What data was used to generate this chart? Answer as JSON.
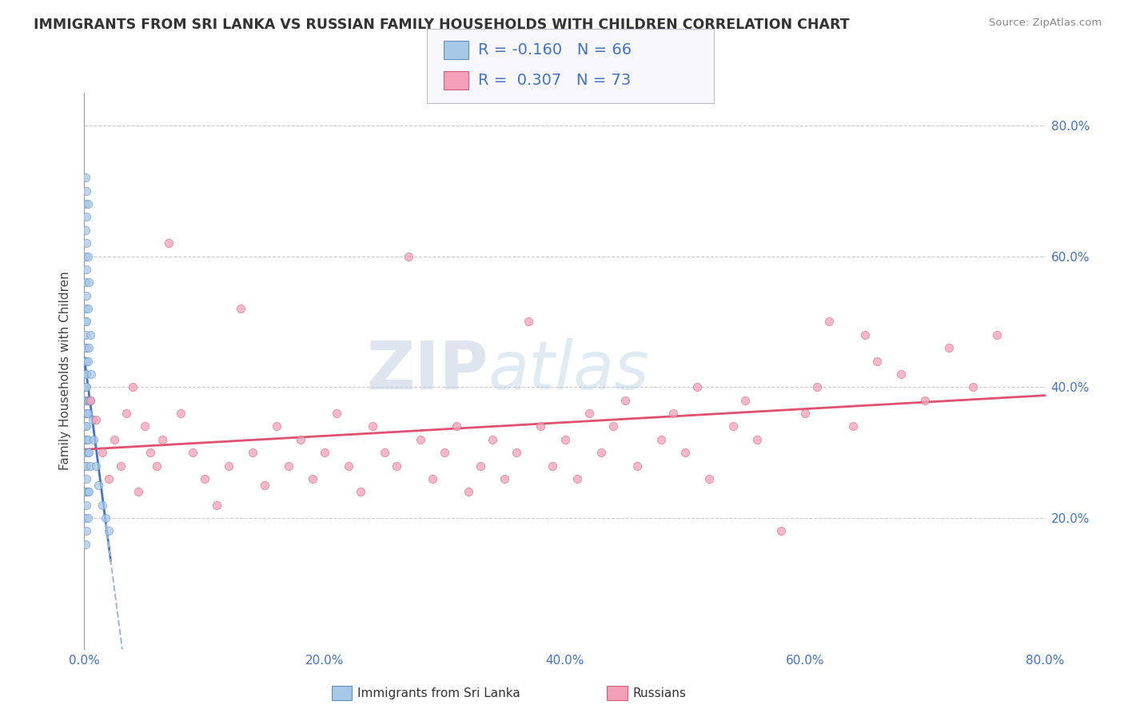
{
  "title": "IMMIGRANTS FROM SRI LANKA VS RUSSIAN FAMILY HOUSEHOLDS WITH CHILDREN CORRELATION CHART",
  "source": "Source: ZipAtlas.com",
  "ylabel": "Family Households with Children",
  "xlim": [
    0.0,
    0.8
  ],
  "ylim": [
    0.0,
    0.85
  ],
  "xticks": [
    0.0,
    0.2,
    0.4,
    0.6,
    0.8
  ],
  "xtick_labels": [
    "0.0%",
    "20.0%",
    "40.0%",
    "60.0%",
    "80.0%"
  ],
  "ytick_vals": [
    0.2,
    0.4,
    0.6,
    0.8
  ],
  "ytick_labels": [
    "20.0%",
    "40.0%",
    "60.0%",
    "80.0%"
  ],
  "sri_lanka_color": "#a8c8e8",
  "sri_lanka_edge": "#6090c0",
  "russian_color": "#f4a0b8",
  "russian_edge": "#d06080",
  "trend_sri_lanka_solid_color": "#4472c4",
  "trend_sri_lanka_dash_color": "#a0b8d8",
  "trend_russian_color": "#e05070",
  "R_sri": -0.16,
  "N_sri": 66,
  "R_rus": 0.307,
  "N_rus": 73,
  "legend_label_sri": "Immigrants from Sri Lanka",
  "legend_label_rus": "Russians",
  "watermark_zip": "ZIP",
  "watermark_atlas": "atlas",
  "background_color": "#ffffff",
  "label_color": "#4472c4",
  "sri_lanka_x": [
    0.001,
    0.001,
    0.001,
    0.001,
    0.001,
    0.001,
    0.001,
    0.001,
    0.001,
    0.001,
    0.001,
    0.001,
    0.001,
    0.001,
    0.001,
    0.001,
    0.001,
    0.001,
    0.001,
    0.001,
    0.002,
    0.002,
    0.002,
    0.002,
    0.002,
    0.002,
    0.002,
    0.002,
    0.002,
    0.002,
    0.002,
    0.002,
    0.002,
    0.002,
    0.002,
    0.002,
    0.002,
    0.002,
    0.002,
    0.002,
    0.003,
    0.003,
    0.003,
    0.003,
    0.003,
    0.003,
    0.003,
    0.003,
    0.003,
    0.003,
    0.004,
    0.004,
    0.004,
    0.004,
    0.004,
    0.005,
    0.005,
    0.005,
    0.006,
    0.007,
    0.008,
    0.01,
    0.012,
    0.015,
    0.018,
    0.02
  ],
  "sri_lanka_y": [
    0.72,
    0.68,
    0.64,
    0.6,
    0.56,
    0.52,
    0.48,
    0.44,
    0.4,
    0.36,
    0.32,
    0.28,
    0.24,
    0.2,
    0.16,
    0.5,
    0.46,
    0.42,
    0.38,
    0.34,
    0.7,
    0.66,
    0.62,
    0.58,
    0.54,
    0.5,
    0.46,
    0.42,
    0.38,
    0.34,
    0.3,
    0.26,
    0.22,
    0.18,
    0.44,
    0.4,
    0.36,
    0.32,
    0.28,
    0.24,
    0.68,
    0.6,
    0.52,
    0.44,
    0.36,
    0.3,
    0.24,
    0.2,
    0.38,
    0.32,
    0.56,
    0.46,
    0.38,
    0.3,
    0.24,
    0.48,
    0.38,
    0.28,
    0.42,
    0.35,
    0.32,
    0.28,
    0.25,
    0.22,
    0.2,
    0.18
  ],
  "russian_x": [
    0.005,
    0.01,
    0.015,
    0.02,
    0.025,
    0.03,
    0.035,
    0.04,
    0.045,
    0.05,
    0.055,
    0.06,
    0.065,
    0.07,
    0.08,
    0.09,
    0.1,
    0.11,
    0.12,
    0.13,
    0.14,
    0.15,
    0.16,
    0.17,
    0.18,
    0.19,
    0.2,
    0.21,
    0.22,
    0.23,
    0.24,
    0.25,
    0.26,
    0.27,
    0.28,
    0.29,
    0.3,
    0.31,
    0.32,
    0.33,
    0.34,
    0.35,
    0.36,
    0.37,
    0.38,
    0.39,
    0.4,
    0.41,
    0.42,
    0.43,
    0.44,
    0.45,
    0.46,
    0.48,
    0.49,
    0.5,
    0.51,
    0.52,
    0.54,
    0.55,
    0.56,
    0.58,
    0.6,
    0.61,
    0.62,
    0.64,
    0.65,
    0.66,
    0.68,
    0.7,
    0.72,
    0.74,
    0.76
  ],
  "russian_y": [
    0.38,
    0.35,
    0.3,
    0.26,
    0.32,
    0.28,
    0.36,
    0.4,
    0.24,
    0.34,
    0.3,
    0.28,
    0.32,
    0.62,
    0.36,
    0.3,
    0.26,
    0.22,
    0.28,
    0.52,
    0.3,
    0.25,
    0.34,
    0.28,
    0.32,
    0.26,
    0.3,
    0.36,
    0.28,
    0.24,
    0.34,
    0.3,
    0.28,
    0.6,
    0.32,
    0.26,
    0.3,
    0.34,
    0.24,
    0.28,
    0.32,
    0.26,
    0.3,
    0.5,
    0.34,
    0.28,
    0.32,
    0.26,
    0.36,
    0.3,
    0.34,
    0.38,
    0.28,
    0.32,
    0.36,
    0.3,
    0.4,
    0.26,
    0.34,
    0.38,
    0.32,
    0.18,
    0.36,
    0.4,
    0.5,
    0.34,
    0.48,
    0.44,
    0.42,
    0.38,
    0.46,
    0.4,
    0.48
  ]
}
